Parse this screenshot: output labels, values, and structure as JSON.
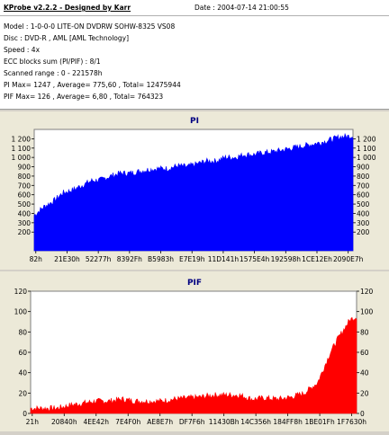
{
  "header": {
    "app_title": "KProbe v2.2.2 - Designed by Karr",
    "date_label": "Date : 2004-07-14 21:00:55",
    "lines": [
      "Model : 1-0-0-0 LITE-ON DVDRW SOHW-8325  VS08",
      "Disc : DVD-R , AML [AML Technology]",
      "Speed : 4x",
      "ECC blocks sum (PI/PIF) : 8/1",
      "Scanned range : 0 - 221578h",
      "PI Max= 1247 , Average= 775,60 , Total= 12475944",
      "PIF Max= 126 , Average= 6,80 , Total= 764323"
    ]
  },
  "colors": {
    "pi": "#0000ff",
    "pif": "#ff0000",
    "plot_bg": "#ffffff",
    "panel_bg": "#ece9d8",
    "title": "#000080"
  },
  "chart_data": [
    {
      "type": "area",
      "title": "PI",
      "ylim": [
        0,
        1300
      ],
      "yticks": [
        "200",
        "300",
        "400",
        "500",
        "600",
        "700",
        "800",
        "900",
        "1 000",
        "1 100",
        "1 200"
      ],
      "ytick_values": [
        200,
        300,
        400,
        500,
        600,
        700,
        800,
        900,
        1000,
        1100,
        1200
      ],
      "xticks": [
        "82h",
        "21E30h",
        "52277h",
        "8392Fh",
        "B5983h",
        "E7E19h",
        "11D141h",
        "1575E4h",
        "192598h",
        "1CE12Eh",
        "2090E7h"
      ],
      "x": [
        0,
        0.03,
        0.06,
        0.09,
        0.12,
        0.15,
        0.18,
        0.21,
        0.24,
        0.27,
        0.3,
        0.33,
        0.36,
        0.39,
        0.42,
        0.45,
        0.48,
        0.51,
        0.54,
        0.57,
        0.6,
        0.63,
        0.66,
        0.69,
        0.72,
        0.75,
        0.78,
        0.81,
        0.84,
        0.87,
        0.9,
        0.93,
        0.96,
        1.0
      ],
      "values": [
        380,
        470,
        530,
        620,
        650,
        700,
        750,
        760,
        800,
        830,
        830,
        850,
        870,
        880,
        880,
        910,
        900,
        930,
        960,
        960,
        1000,
        1000,
        1030,
        1030,
        1050,
        1060,
        1080,
        1100,
        1120,
        1140,
        1160,
        1190,
        1220,
        1230
      ]
    },
    {
      "type": "area",
      "title": "PIF",
      "ylim": [
        0,
        120
      ],
      "yticks": [
        "0",
        "20",
        "40",
        "60",
        "80",
        "100",
        "120"
      ],
      "ytick_values": [
        0,
        20,
        40,
        60,
        80,
        100,
        120
      ],
      "xticks": [
        "21h",
        "20840h",
        "4EE42h",
        "7E4F0h",
        "AE8E7h",
        "DF7F6h",
        "11430Bh",
        "14C356h",
        "184FF8h",
        "1BE01Fh",
        "1F7630h"
      ],
      "x": [
        0,
        0.04,
        0.08,
        0.12,
        0.16,
        0.2,
        0.24,
        0.28,
        0.32,
        0.36,
        0.4,
        0.44,
        0.48,
        0.52,
        0.56,
        0.6,
        0.64,
        0.68,
        0.72,
        0.76,
        0.8,
        0.84,
        0.88,
        0.9,
        0.92,
        0.94,
        0.96,
        0.98,
        1.0
      ],
      "values": [
        5,
        5,
        5,
        8,
        10,
        12,
        12,
        14,
        12,
        12,
        12,
        14,
        15,
        16,
        18,
        18,
        18,
        14,
        15,
        14,
        16,
        20,
        30,
        45,
        60,
        72,
        82,
        92,
        95
      ]
    }
  ]
}
